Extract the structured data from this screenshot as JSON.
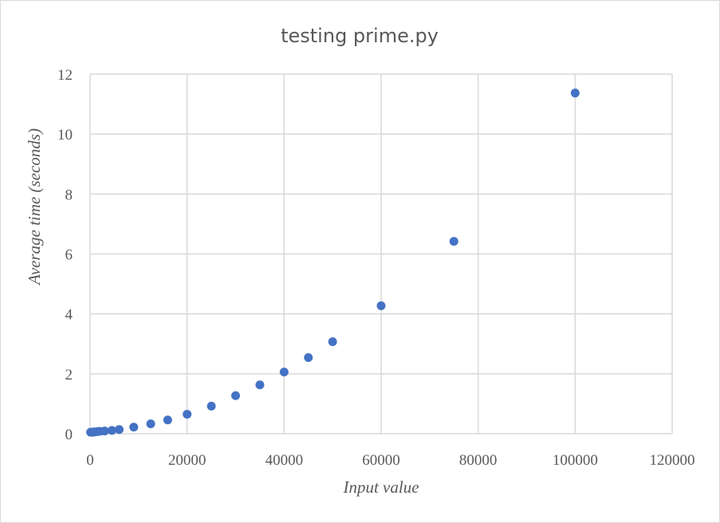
{
  "chart_data": {
    "type": "scatter",
    "title": "testing prime.py",
    "xlabel": "Input value",
    "ylabel": "Average time (seconds)",
    "xlim": [
      0,
      120000
    ],
    "ylim": [
      0,
      12
    ],
    "x_ticks": [
      0,
      20000,
      40000,
      60000,
      80000,
      100000,
      120000
    ],
    "y_ticks": [
      0,
      2,
      4,
      6,
      8,
      10,
      12
    ],
    "x_tick_labels": [
      "0",
      "20000",
      "40000",
      "60000",
      "80000",
      "100000",
      "120000"
    ],
    "y_tick_labels": [
      "0",
      "2",
      "4",
      "6",
      "8",
      "10",
      "12"
    ],
    "grid": true,
    "legend": "none",
    "color": "#4472c4",
    "series": [
      {
        "points": [
          [
            100,
            0.05
          ],
          [
            250,
            0.05
          ],
          [
            500,
            0.05
          ],
          [
            750,
            0.06
          ],
          [
            1000,
            0.06
          ],
          [
            1500,
            0.07
          ],
          [
            2000,
            0.08
          ],
          [
            3000,
            0.09
          ],
          [
            4500,
            0.11
          ],
          [
            6000,
            0.14
          ],
          [
            9000,
            0.22
          ],
          [
            12500,
            0.33
          ],
          [
            16000,
            0.46
          ],
          [
            20000,
            0.65
          ],
          [
            25000,
            0.92
          ],
          [
            30000,
            1.27
          ],
          [
            35000,
            1.63
          ],
          [
            40000,
            2.06
          ],
          [
            45000,
            2.54
          ],
          [
            50000,
            3.07
          ],
          [
            60000,
            4.27
          ],
          [
            75000,
            6.42
          ],
          [
            100000,
            11.37
          ]
        ]
      }
    ]
  }
}
